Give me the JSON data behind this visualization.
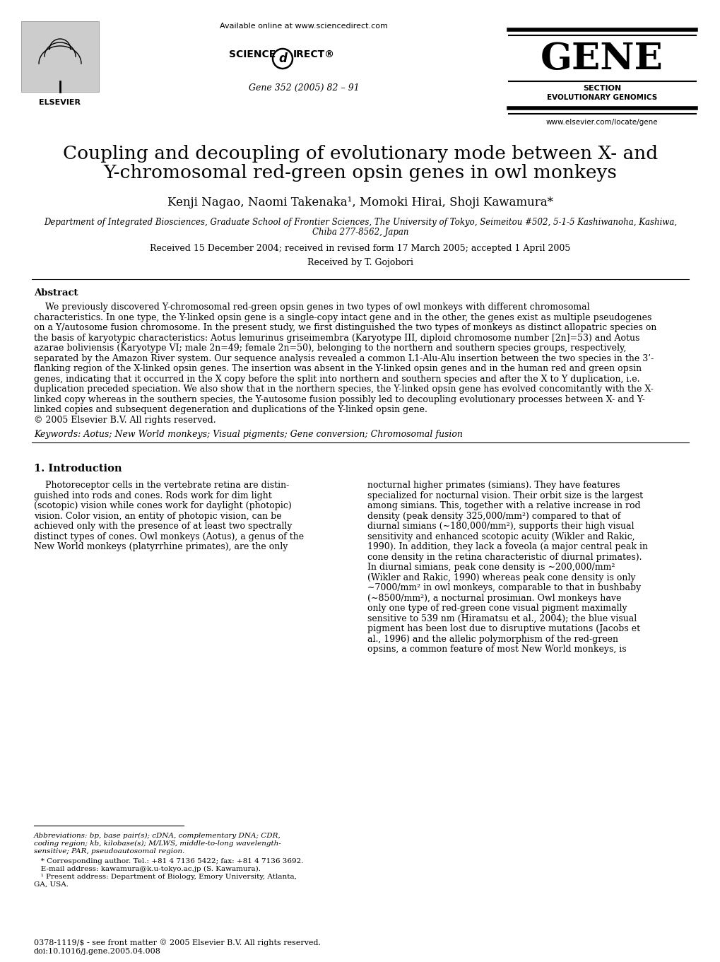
{
  "bg_color": "#ffffff",
  "title_line1": "Coupling and decoupling of evolutionary mode between X- and",
  "title_line2": "Y-chromosomal red-green opsin genes in owl monkeys",
  "authors": "Kenji Nagao, Naomi Takenaka¹, Momoki Hirai, Shoji Kawamura*",
  "affiliation_line1": "Department of Integrated Biosciences, Graduate School of Frontier Sciences, The University of Tokyo, Seimeitou #502, 5-1-5 Kashiwanoha, Kashiwa,",
  "affiliation_line2": "Chiba 277-8562, Japan",
  "received": "Received 15 December 2004; received in revised form 17 March 2005; accepted 1 April 2005",
  "received_by": "Received by T. Gojobori",
  "available_online": "Available online at www.sciencedirect.com",
  "journal_line": "Gene 352 (2005) 82 – 91",
  "website": "www.elsevier.com/locate/gene",
  "gene_label": "GENE",
  "section_label": "SECTION",
  "evol_genomics": "EVOLUTIONARY GENOMICS",
  "abstract_title": "Abstract",
  "keywords": "Keywords: Aotus; New World monkeys; Visual pigments; Gene conversion; Chromosomal fusion",
  "intro_heading": "1. Introduction",
  "footnote_abbr_line1": "Abbreviations: bp, base pair(s); cDNA, complementary DNA; CDR,",
  "footnote_abbr_line2": "coding region; kb, kilobase(s); M/LWS, middle-to-long wavelength-",
  "footnote_abbr_line3": "sensitive; PAR, pseudoautosomal region.",
  "footnote_star": "   * Corresponding author. Tel.: +81 4 7136 5422; fax: +81 4 7136 3692.",
  "footnote_email": "   E-mail address: kawamura@k.u-tokyo.ac.jp (S. Kawamura).",
  "footnote_1": "   ¹ Present address: Department of Biology, Emory University, Atlanta,",
  "footnote_1b": "GA, USA.",
  "footer_line1": "0378-1119/$ - see front matter © 2005 Elsevier B.V. All rights reserved.",
  "footer_line2": "doi:10.1016/j.gene.2005.04.008",
  "abstract_lines": [
    "    We previously discovered Y-chromosomal red-green opsin genes in two types of owl monkeys with different chromosomal",
    "characteristics. In one type, the Y-linked opsin gene is a single-copy intact gene and in the other, the genes exist as multiple pseudogenes",
    "on a Y/autosome fusion chromosome. In the present study, we first distinguished the two types of monkeys as distinct allopatric species on",
    "the basis of karyotypic characteristics: Aotus lemurinus griseimembra (Karyotype III, diploid chromosome number [2n]=53) and Aotus",
    "azarae boliviensis (Karyotype VI; male 2n=49; female 2n=50), belonging to the northern and southern species groups, respectively,",
    "separated by the Amazon River system. Our sequence analysis revealed a common L1-Alu-Alu insertion between the two species in the 3’-",
    "flanking region of the X-linked opsin genes. The insertion was absent in the Y-linked opsin genes and in the human red and green opsin",
    "genes, indicating that it occurred in the X copy before the split into northern and southern species and after the X to Y duplication, i.e.",
    "duplication preceded speciation. We also show that in the northern species, the Y-linked opsin gene has evolved concomitantly with the X-",
    "linked copy whereas in the southern species, the Y-autosome fusion possibly led to decoupling evolutionary processes between X- and Y-",
    "linked copies and subsequent degeneration and duplications of the Y-linked opsin gene.",
    "© 2005 Elsevier B.V. All rights reserved."
  ],
  "intro_left_lines": [
    "    Photoreceptor cells in the vertebrate retina are distin-",
    "guished into rods and cones. Rods work for dim light",
    "(scotopic) vision while cones work for daylight (photopic)",
    "vision. Color vision, an entity of photopic vision, can be",
    "achieved only with the presence of at least two spectrally",
    "distinct types of cones. Owl monkeys (Aotus), a genus of the",
    "New World monkeys (platyrrhine primates), are the only"
  ],
  "intro_right_lines": [
    "nocturnal higher primates (simians). They have features",
    "specialized for nocturnal vision. Their orbit size is the largest",
    "among simians. This, together with a relative increase in rod",
    "density (peak density 325,000/mm²) compared to that of",
    "diurnal simians (∼180,000/mm²), supports their high visual",
    "sensitivity and enhanced scotopic acuity (Wikler and Rakic,",
    "1990). In addition, they lack a foveola (a major central peak in",
    "cone density in the retina characteristic of diurnal primates).",
    "In diurnal simians, peak cone density is ∼200,000/mm²",
    "(Wikler and Rakic, 1990) whereas peak cone density is only",
    "∼7000/mm² in owl monkeys, comparable to that in bushbaby",
    "(∼8500/mm²), a nocturnal prosimian. Owl monkeys have",
    "only one type of red-green cone visual pigment maximally",
    "sensitive to 539 nm (Hiramatsu et al., 2004); the blue visual",
    "pigment has been lost due to disruptive mutations (Jacobs et",
    "al., 1996) and the allelic polymorphism of the red-green",
    "opsins, a common feature of most New World monkeys, is"
  ]
}
